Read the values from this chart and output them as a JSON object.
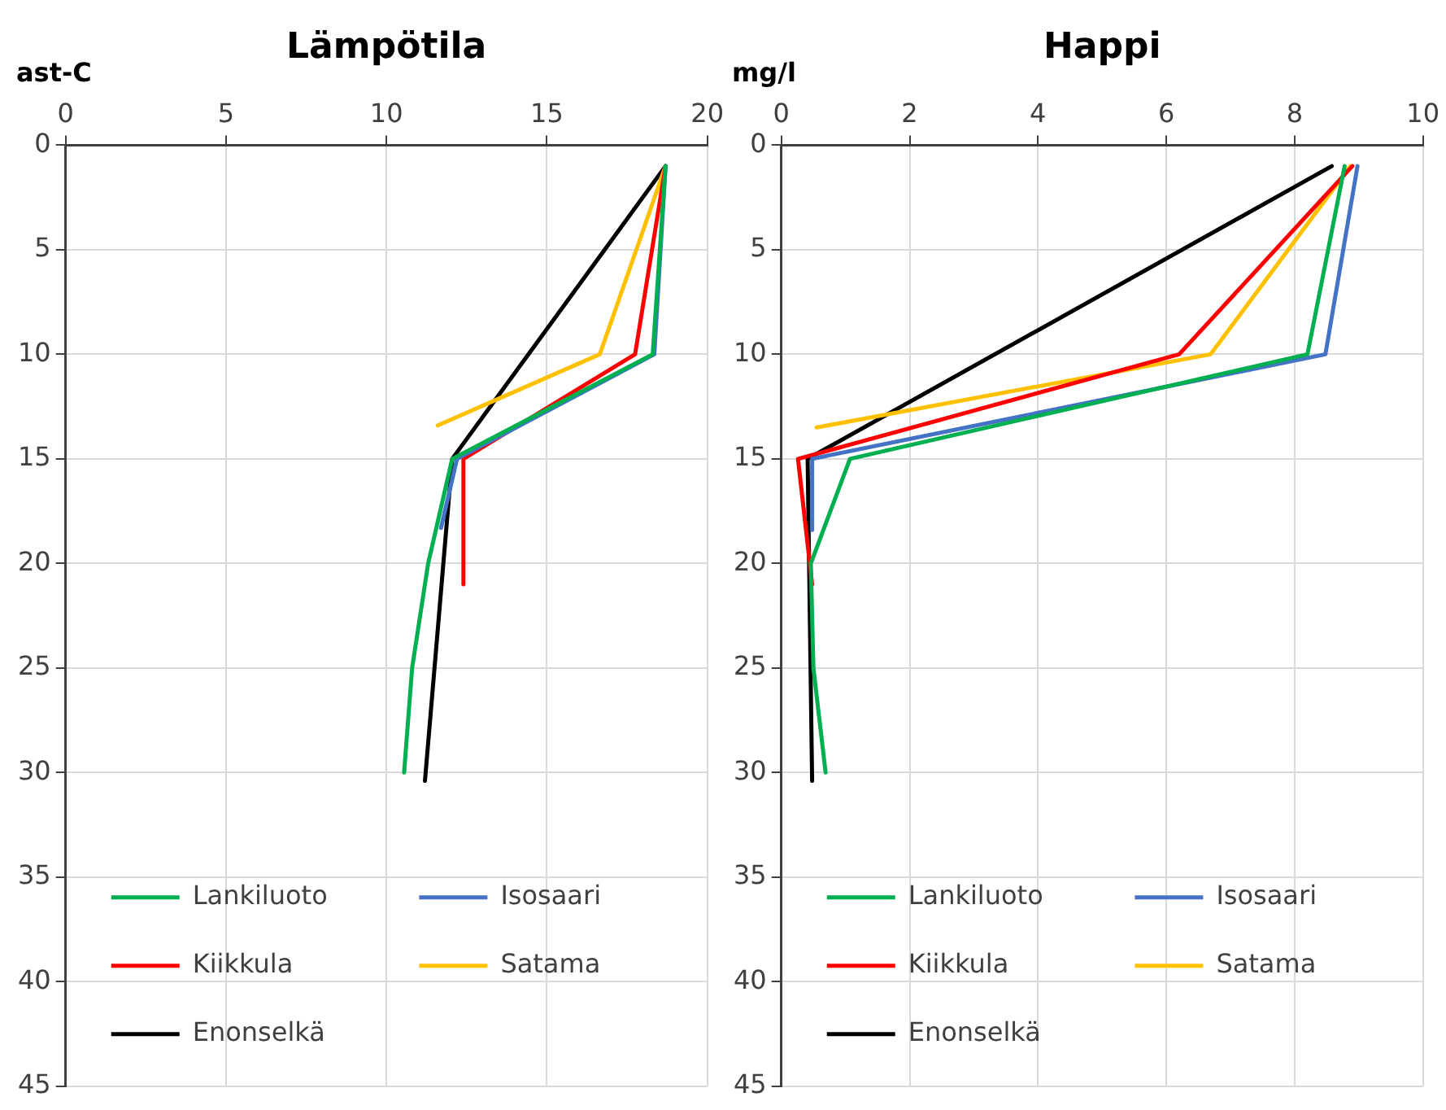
{
  "chart_data": [
    {
      "type": "line",
      "title": "Lämpötila",
      "xlabel": "ast-C",
      "xlim": [
        0,
        20
      ],
      "xticks": [
        0,
        5,
        10,
        15,
        20
      ],
      "ylim": [
        45,
        0
      ],
      "yticks": [
        0,
        5,
        10,
        15,
        20,
        25,
        30,
        35,
        40,
        45
      ],
      "grid": true,
      "legend": "bottom left",
      "marker": "none",
      "line_style": "solid",
      "series": [
        {
          "name": "Lankiluoto",
          "color": "#00b050",
          "x": [
            18.7,
            18.3,
            12.05,
            11.3,
            10.8,
            10.55
          ],
          "values": [
            1,
            10,
            15,
            20,
            25,
            30
          ]
        },
        {
          "name": "Isosaari",
          "color": "#4472c4",
          "x": [
            18.7,
            18.35,
            12.2,
            11.7
          ],
          "values": [
            1,
            10,
            15,
            18.3
          ]
        },
        {
          "name": "Kiikkula",
          "color": "#ff0000",
          "x": [
            18.7,
            17.75,
            12.4,
            12.4
          ],
          "values": [
            1,
            10,
            15,
            21
          ]
        },
        {
          "name": "Satama",
          "color": "#ffc000",
          "x": [
            18.7,
            16.65,
            11.6
          ],
          "values": [
            1,
            10,
            13.4
          ]
        },
        {
          "name": "Enonselkä",
          "color": "#000000",
          "x": [
            18.7,
            12.05,
            11.2
          ],
          "values": [
            1,
            15,
            30.4
          ]
        }
      ]
    },
    {
      "type": "line",
      "title": "Happi",
      "xlabel": "mg/l",
      "xlim": [
        0,
        10
      ],
      "xticks": [
        0,
        2,
        4,
        6,
        8,
        10
      ],
      "ylim": [
        45,
        0
      ],
      "yticks": [
        0,
        5,
        10,
        15,
        20,
        25,
        30,
        35,
        40,
        45
      ],
      "grid": true,
      "legend": "bottom left",
      "marker": "none",
      "line_style": "solid",
      "series": [
        {
          "name": "Lankiluoto",
          "color": "#00b050",
          "x": [
            8.78,
            8.2,
            1.07,
            0.46,
            0.5,
            0.69
          ],
          "values": [
            1,
            10,
            15,
            20,
            25,
            30
          ]
        },
        {
          "name": "Isosaari",
          "color": "#4472c4",
          "x": [
            8.98,
            8.48,
            0.48,
            0.48
          ],
          "values": [
            1,
            10,
            15,
            18.4
          ]
        },
        {
          "name": "Kiikkula",
          "color": "#ff0000",
          "x": [
            8.9,
            6.2,
            0.26,
            0.48
          ],
          "values": [
            1,
            10,
            15,
            21
          ]
        },
        {
          "name": "Satama",
          "color": "#ffc000",
          "x": [
            8.87,
            6.69,
            0.55
          ],
          "values": [
            1,
            10,
            13.5
          ]
        },
        {
          "name": "Enonselkä",
          "color": "#000000",
          "x": [
            8.58,
            0.41,
            0.48
          ],
          "values": [
            1,
            15,
            30.4
          ]
        }
      ]
    }
  ]
}
